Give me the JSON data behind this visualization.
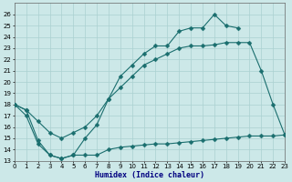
{
  "line1": {
    "x": [
      0,
      1,
      2,
      3,
      4,
      5,
      6,
      7,
      8,
      9,
      10,
      11,
      12,
      13,
      14,
      15,
      16,
      17,
      18,
      19,
      20
    ],
    "y": [
      18,
      17,
      14.5,
      13.5,
      13.2,
      13.5,
      15,
      16.2,
      18.5,
      20.5,
      21.5,
      22.5,
      23.2,
      23.2,
      24.5,
      24.8,
      24.8,
      26,
      25,
      24.8,
      null
    ]
  },
  "line2": {
    "x": [
      0,
      1,
      2,
      3,
      4,
      5,
      6,
      7,
      8,
      9,
      10,
      11,
      12,
      13,
      14,
      15,
      16,
      17,
      18,
      19,
      20,
      21,
      22,
      23
    ],
    "y": [
      18,
      17.5,
      16.5,
      15.5,
      15,
      15.5,
      16,
      17,
      18.5,
      19.5,
      20.5,
      21.5,
      22,
      22.5,
      23,
      23.2,
      23.2,
      23.3,
      23.5,
      23.5,
      23.5,
      21,
      18,
      15.3
    ]
  },
  "line3": {
    "x": [
      0,
      1,
      2,
      3,
      4,
      5,
      6,
      7,
      8,
      9,
      10,
      11,
      12,
      13,
      14,
      15,
      16,
      17,
      18,
      19,
      20,
      21,
      22,
      23
    ],
    "y": [
      18,
      17.5,
      14.8,
      13.5,
      13.2,
      13.5,
      13.5,
      13.5,
      14.0,
      14.2,
      14.3,
      14.4,
      14.5,
      14.5,
      14.6,
      14.7,
      14.8,
      14.9,
      15.0,
      15.1,
      15.2,
      15.2,
      15.2,
      15.3
    ]
  },
  "xlim": [
    0,
    23
  ],
  "ylim": [
    13,
    27
  ],
  "yticks": [
    13,
    14,
    15,
    16,
    17,
    18,
    19,
    20,
    21,
    22,
    23,
    24,
    25,
    26
  ],
  "xticks": [
    0,
    1,
    2,
    3,
    4,
    5,
    6,
    7,
    8,
    9,
    10,
    11,
    12,
    13,
    14,
    15,
    16,
    17,
    18,
    19,
    20,
    21,
    22,
    23
  ],
  "xlabel": "Humidex (Indice chaleur)",
  "background_color": "#cce8e8",
  "grid_color": "#aad0d0",
  "line_color": "#1a6e6e",
  "markersize": 2.5,
  "linewidth": 0.8,
  "axis_fontsize": 5.5,
  "tick_fontsize": 5.0,
  "xlabel_fontsize": 6.0,
  "xlabel_color": "#000080"
}
